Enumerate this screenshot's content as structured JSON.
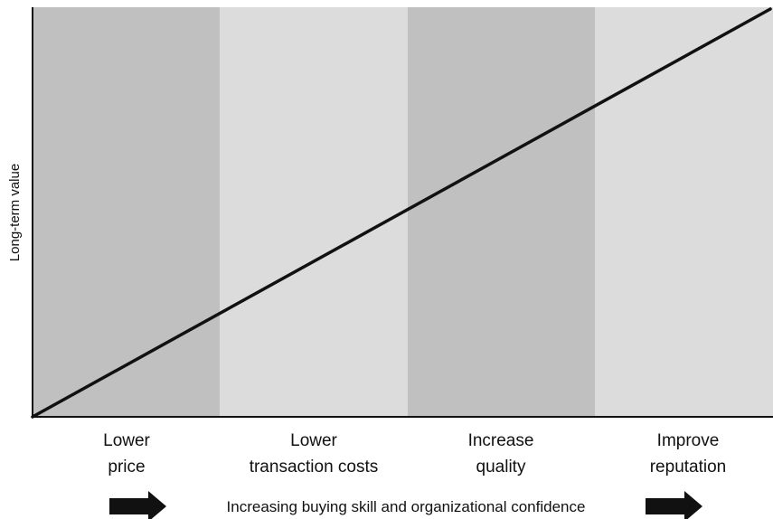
{
  "y_axis_label": "Long-term value",
  "bands": [
    {
      "line1": "Lower",
      "line2": "price",
      "shade": "#c0c0c0"
    },
    {
      "line1": "Lower",
      "line2": "transaction costs",
      "shade": "#dcdcdc"
    },
    {
      "line1": "Increase",
      "line2": "quality",
      "shade": "#c0c0c0"
    },
    {
      "line1": "Improve",
      "line2": "reputation",
      "shade": "#dcdcdc"
    }
  ],
  "bottom_caption": "Increasing buying skill and organizational confidence",
  "colors": {
    "band_dark": "#c0c0c0",
    "band_light": "#dcdcdc",
    "line": "#111111",
    "arrow": "#111111"
  },
  "icons": {
    "left_arrow": "right-arrow-icon",
    "right_arrow": "right-arrow-icon"
  }
}
